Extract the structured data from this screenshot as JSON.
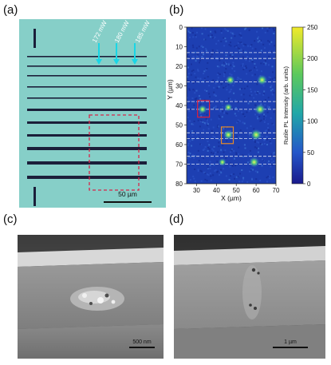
{
  "panels": {
    "a": {
      "label": "(a)",
      "powers": [
        "172 mW",
        "180 mW",
        "185 mW"
      ],
      "scalebar": "50 µm",
      "background": "#86cfc8",
      "line_color": "#1b1f3a",
      "arrow_color": "#19d6e6",
      "box_color": "#d6264a"
    },
    "b": {
      "label": "(b)",
      "colorbar_title": "Rutile PL Intensity (arb. units)",
      "colorbar_ticks": [
        "0",
        "50",
        "100",
        "150",
        "200",
        "250"
      ]
    },
    "c": {
      "label": "(c)",
      "scalebar": "500 nm"
    },
    "d": {
      "label": "(d)",
      "scalebar": "1 µm"
    }
  },
  "chart_data": {
    "type": "heatmap",
    "xlabel": "X (µm)",
    "ylabel": "Y (µm)",
    "xlim": [
      25,
      70
    ],
    "ylim": [
      80,
      0
    ],
    "x_ticks": [
      30,
      40,
      50,
      60,
      70
    ],
    "y_ticks": [
      0,
      10,
      20,
      30,
      40,
      50,
      60,
      70,
      80
    ],
    "colorbar_range": [
      0,
      250
    ],
    "dashed_rows_y": [
      13,
      16,
      28,
      38,
      42,
      54,
      57,
      66,
      70
    ],
    "hotspots": [
      {
        "x": 47,
        "y": 27,
        "value": 120
      },
      {
        "x": 63,
        "y": 27,
        "value": 150
      },
      {
        "x": 33,
        "y": 42,
        "value": 110
      },
      {
        "x": 46,
        "y": 41,
        "value": 90
      },
      {
        "x": 62,
        "y": 42,
        "value": 160
      },
      {
        "x": 46,
        "y": 55,
        "value": 140
      },
      {
        "x": 60,
        "y": 55,
        "value": 170
      },
      {
        "x": 43,
        "y": 69,
        "value": 80
      },
      {
        "x": 59,
        "y": 69,
        "value": 150
      }
    ],
    "boxes": [
      {
        "x0": 30.5,
        "x1": 36.5,
        "y0": 37.5,
        "y1": 46,
        "color": "#e0203a"
      },
      {
        "x0": 42.5,
        "x1": 48.5,
        "y0": 51,
        "y1": 59.5,
        "color": "#e58a2a"
      }
    ]
  }
}
